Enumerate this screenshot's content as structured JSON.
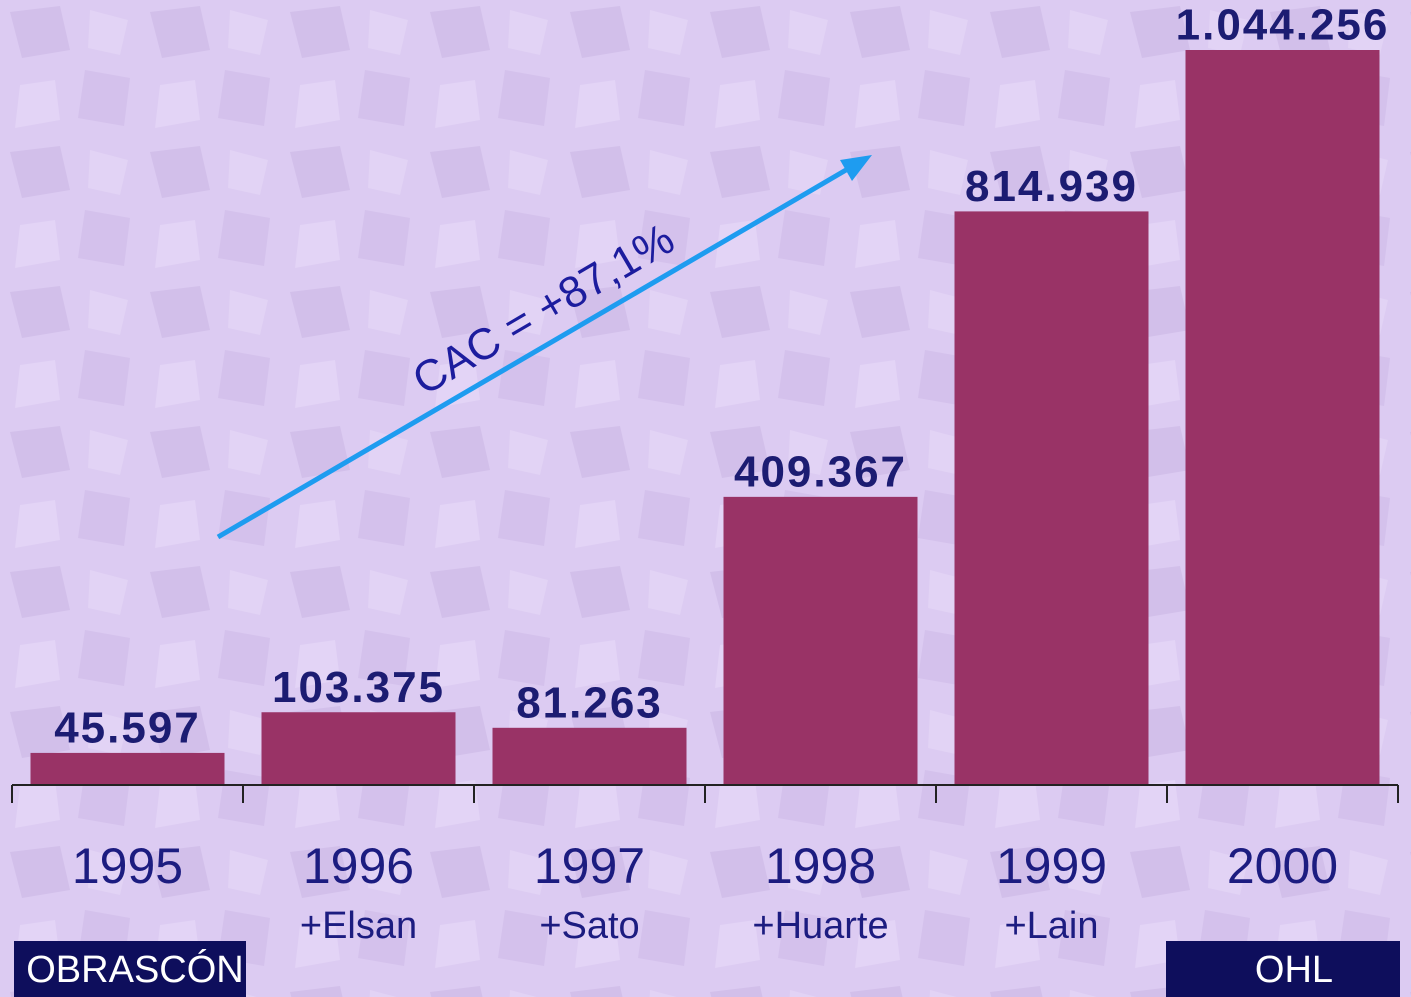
{
  "chart_data": {
    "type": "bar",
    "categories": [
      "1995",
      "1996",
      "1997",
      "1998",
      "1999",
      "2000"
    ],
    "category_notes": [
      null,
      "+Elsan",
      "+Sato",
      "+Huarte",
      "+Lain",
      null
    ],
    "values": [
      45597,
      103375,
      81263,
      409367,
      814939,
      1044256
    ],
    "value_labels": [
      "45.597",
      "103.375",
      "81.263",
      "409.367",
      "814.939",
      "1.044.256"
    ],
    "color": "#993366",
    "annotations": {
      "growth": "CAC = +87,1%",
      "start_company": "OBRASCÓN",
      "end_company": "OHL"
    }
  }
}
